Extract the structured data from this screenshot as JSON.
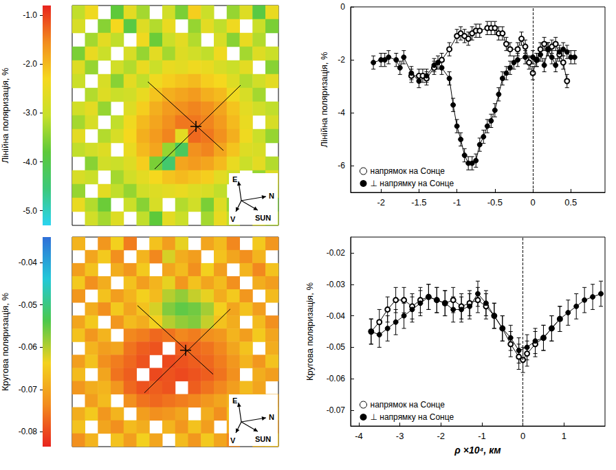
{
  "chart_data": [
    {
      "type": "heatmap",
      "colorbar": {
        "label": "Лінійна поляризація, %",
        "range": [
          -5.3,
          -0.8
        ],
        "ticks": [
          {
            "value": -1,
            "label": "-1.0"
          },
          {
            "value": -2,
            "label": "-2.0"
          },
          {
            "value": -3,
            "label": "-3.0"
          },
          {
            "value": -4,
            "label": "-4.0"
          },
          {
            "value": -5,
            "label": "-5.0"
          }
        ],
        "colors": [
          "#2ad4f0",
          "#3cc87a",
          "#5dc93a",
          "#c8e02a",
          "#f5d81e",
          "#f28c1e",
          "#e8241e"
        ]
      },
      "compass": [
        "E",
        "N",
        "V",
        "SUN"
      ],
      "cells": [
        [
          -3.1,
          -2.4,
          null,
          -3.8,
          -2.6,
          -3.3,
          null,
          -2.9,
          -3.6,
          -2.2,
          -3.0,
          null,
          -3.4,
          -2.7,
          -3.9,
          -2.5
        ],
        [
          -2.8,
          null,
          -3.5,
          -2.3,
          -3.9,
          -2.7,
          -3.2,
          -2.5,
          null,
          -3.4,
          -2.6,
          -3.1,
          -2.4,
          null,
          -3.0,
          -3.6
        ],
        [
          null,
          -3.3,
          -2.6,
          -3.1,
          null,
          -2.4,
          -3.7,
          -3.0,
          -2.6,
          -3.2,
          null,
          -2.8,
          -3.5,
          -2.5,
          -3.2,
          null
        ],
        [
          -3.6,
          -2.5,
          -3.0,
          null,
          -2.8,
          -3.4,
          -2.6,
          -3.3,
          -2.7,
          -2.9,
          -3.1,
          -2.4,
          null,
          -3.3,
          -2.7,
          -3.0
        ],
        [
          -2.7,
          -3.4,
          null,
          -2.9,
          -3.2,
          -2.5,
          -3.0,
          -2.5,
          -2.6,
          -2.4,
          -2.5,
          -2.8,
          -3.0,
          -2.6,
          null,
          -3.5
        ],
        [
          -3.0,
          null,
          -2.8,
          -3.5,
          -2.6,
          -3.1,
          -2.4,
          -2.2,
          -2.1,
          -2.0,
          -2.2,
          -2.3,
          -2.7,
          -3.2,
          -2.9,
          -2.6
        ],
        [
          null,
          -3.2,
          -2.7,
          -3.0,
          -2.9,
          -2.5,
          -2.1,
          -1.9,
          -1.8,
          -1.7,
          -1.9,
          -2.0,
          -2.4,
          -2.8,
          -3.3,
          null
        ],
        [
          -2.9,
          -2.6,
          -3.4,
          null,
          -2.7,
          -2.2,
          -1.9,
          -1.7,
          -1.6,
          -1.5,
          -1.6,
          -1.8,
          -2.1,
          -2.6,
          -2.9,
          -3.1
        ],
        [
          -3.3,
          -2.8,
          null,
          -3.1,
          -2.4,
          -2.0,
          -1.8,
          -1.6,
          -1.4,
          -1.4,
          -1.5,
          -1.7,
          -2.0,
          -2.5,
          null,
          -2.8
        ],
        [
          -2.6,
          null,
          -3.2,
          -2.8,
          -2.3,
          -1.9,
          -1.7,
          -1.5,
          -2.6,
          -1.3,
          -1.4,
          -1.6,
          -1.9,
          -2.4,
          -3.0,
          -3.4
        ],
        [
          -3.1,
          -2.9,
          -2.7,
          null,
          -2.5,
          -2.0,
          -1.8,
          -3.4,
          -4.2,
          -1.6,
          -1.5,
          -1.8,
          -2.1,
          -2.7,
          -2.8,
          null
        ],
        [
          null,
          -3.5,
          -2.9,
          -3.0,
          -2.7,
          -2.2,
          -3.6,
          -4.4,
          -1.8,
          -1.7,
          -1.8,
          -2.0,
          -2.5,
          -3.0,
          -2.6,
          -3.2
        ],
        [
          -2.8,
          -3.0,
          null,
          -3.3,
          -2.9,
          -2.6,
          -2.3,
          -2.1,
          -2.0,
          -2.1,
          -2.2,
          -2.6,
          -2.9,
          null,
          -3.4,
          -2.7
        ],
        [
          -3.4,
          null,
          -2.6,
          -3.1,
          -3.4,
          -2.9,
          -2.7,
          -2.6,
          -2.5,
          -2.7,
          -2.8,
          -3.1,
          null,
          -3.3,
          -2.9,
          -3.0
        ],
        [
          -2.5,
          -3.2,
          -3.7,
          null,
          -3.0,
          -3.5,
          -2.8,
          null,
          -3.2,
          -2.9,
          -3.6,
          -2.7,
          -3.4,
          -2.8,
          null,
          -3.6
        ],
        [
          null,
          -2.9,
          -3.3,
          -2.7,
          null,
          -3.1,
          -3.8,
          -2.6,
          -3.0,
          null,
          -3.3,
          -2.5,
          -3.1,
          null,
          -2.7,
          -3.2
        ]
      ]
    },
    {
      "type": "line",
      "ylabel": "Лінійна поляризація, %",
      "xlim": [
        -2.4,
        0.95
      ],
      "xticks": [
        -2,
        -1.5,
        -1,
        -0.5,
        0,
        0.5
      ],
      "ylim": [
        -7,
        0
      ],
      "yticks": [
        -6,
        -4,
        -2,
        0
      ],
      "grid": false,
      "legend": "lower left",
      "reference_line": {
        "x": 0,
        "line_style": "dashed"
      },
      "series": [
        {
          "name": "напрямок на Сонце",
          "color": "#000000",
          "marker": "circle_open",
          "error": 0.25,
          "x": [
            -1.6,
            -1.5,
            -1.45,
            -1.4,
            -1.3,
            -1.2,
            -1.1,
            -1.0,
            -0.95,
            -0.9,
            -0.85,
            -0.8,
            -0.75,
            -0.7,
            -0.6,
            -0.55,
            -0.5,
            -0.45,
            -0.4,
            -0.35,
            -0.3,
            -0.2,
            -0.15,
            -0.1,
            -0.05,
            0,
            0.05,
            0.1,
            0.15,
            0.2,
            0.25,
            0.3,
            0.35,
            0.4,
            0.45
          ],
          "values": [
            -2.6,
            -2.6,
            -2.6,
            -2.7,
            -2.3,
            -2.0,
            -1.6,
            -1.1,
            -1.0,
            -1.1,
            -1.2,
            -1.0,
            -0.9,
            -0.9,
            -0.8,
            -0.8,
            -0.8,
            -1.0,
            -1.0,
            -1.4,
            -1.6,
            -1.6,
            -1.2,
            -1.5,
            -2.1,
            -2.5,
            -2.0,
            -1.6,
            -1.4,
            -1.6,
            -1.5,
            -1.4,
            -1.8,
            -2.1,
            -2.8
          ]
        },
        {
          "name": "⊥ напрямку на Сонце",
          "color": "#000000",
          "marker": "circle",
          "error": 0.25,
          "x": [
            -2.1,
            -2.0,
            -1.95,
            -1.9,
            -1.8,
            -1.75,
            -1.7,
            -1.6,
            -1.5,
            -1.4,
            -1.3,
            -1.25,
            -1.2,
            -1.1,
            -1.05,
            -1.0,
            -0.95,
            -0.9,
            -0.85,
            -0.8,
            -0.75,
            -0.7,
            -0.65,
            -0.6,
            -0.55,
            -0.5,
            -0.45,
            -0.4,
            -0.35,
            -0.3,
            -0.25,
            -0.2,
            -0.1,
            0,
            0.05,
            0.1,
            0.15,
            0.2,
            0.25,
            0.3,
            0.35,
            0.4,
            0.45,
            0.5,
            0.55
          ],
          "values": [
            -2.1,
            -2.0,
            -2.0,
            -1.9,
            -2.0,
            -2.3,
            -1.9,
            -2.5,
            -2.8,
            -2.6,
            -2.2,
            -2.1,
            -2.3,
            -2.7,
            -3.7,
            -4.5,
            -5.0,
            -5.6,
            -5.9,
            -5.9,
            -5.8,
            -5.2,
            -4.9,
            -4.5,
            -4.3,
            -3.9,
            -3.3,
            -2.7,
            -2.5,
            -2.3,
            -2.1,
            -2.0,
            -1.9,
            -1.9,
            -2.0,
            -1.8,
            -2.2,
            -1.6,
            -1.9,
            -2.2,
            -1.7,
            -1.6,
            -1.7,
            -1.9,
            -1.9
          ]
        }
      ]
    },
    {
      "type": "heatmap",
      "colorbar": {
        "label": "Кругова поляризація, %",
        "range": [
          -0.0835,
          -0.034
        ],
        "ticks": [
          -0.08,
          -0.07,
          -0.06,
          -0.05,
          -0.04
        ],
        "colors": [
          "#e8241e",
          "#f28c1e",
          "#f3d21e",
          "#4cc84c",
          "#22c8d8",
          "#2f6fd8"
        ]
      },
      "compass": [
        "E",
        "N",
        "V",
        "SUN"
      ],
      "cells": [
        [
          -0.068,
          null,
          -0.072,
          -0.064,
          -0.075,
          null,
          -0.066,
          -0.071,
          -0.063,
          null,
          -0.07,
          -0.067,
          -0.074,
          null,
          -0.065,
          -0.072
        ],
        [
          null,
          -0.07,
          -0.065,
          -0.073,
          null,
          -0.068,
          -0.074,
          -0.062,
          -0.069,
          -0.071,
          null,
          -0.066,
          -0.07,
          -0.073,
          -0.068,
          null
        ],
        [
          -0.071,
          -0.066,
          null,
          -0.069,
          -0.072,
          -0.065,
          null,
          -0.07,
          -0.067,
          -0.073,
          -0.064,
          -0.071,
          null,
          -0.068,
          -0.074,
          -0.066
        ],
        [
          -0.065,
          -0.073,
          -0.069,
          null,
          -0.066,
          -0.071,
          -0.068,
          -0.063,
          -0.072,
          -0.066,
          -0.07,
          -0.067,
          -0.073,
          null,
          -0.069,
          -0.071
        ],
        [
          -0.072,
          null,
          -0.066,
          -0.071,
          -0.068,
          -0.064,
          -0.067,
          -0.06,
          -0.058,
          -0.061,
          -0.063,
          -0.069,
          -0.065,
          -0.072,
          null,
          -0.067
        ],
        [
          null,
          -0.069,
          -0.073,
          -0.065,
          -0.07,
          -0.066,
          -0.062,
          -0.057,
          -0.055,
          -0.056,
          -0.059,
          -0.064,
          -0.07,
          -0.066,
          -0.071,
          null
        ],
        [
          -0.07,
          -0.065,
          null,
          -0.072,
          -0.067,
          -0.069,
          -0.064,
          -0.06,
          -0.058,
          -0.057,
          -0.061,
          -0.066,
          -0.069,
          null,
          -0.067,
          -0.073
        ],
        [
          -0.066,
          -0.072,
          -0.068,
          null,
          -0.074,
          -0.075,
          -0.077,
          -0.076,
          -0.074,
          -0.075,
          -0.073,
          -0.072,
          -0.068,
          -0.071,
          -0.065,
          -0.07
        ],
        [
          null,
          -0.068,
          -0.071,
          -0.07,
          -0.076,
          -0.078,
          -0.079,
          null,
          -0.078,
          -0.077,
          -0.076,
          -0.074,
          -0.07,
          -0.066,
          null,
          -0.069
        ],
        [
          -0.071,
          -0.066,
          -0.073,
          -0.075,
          -0.077,
          -0.079,
          null,
          -0.08,
          -0.079,
          -0.078,
          -0.077,
          -0.075,
          -0.072,
          -0.068,
          -0.072,
          -0.066
        ],
        [
          -0.067,
          null,
          -0.07,
          -0.076,
          -0.078,
          null,
          -0.08,
          -0.079,
          -0.08,
          -0.079,
          -0.078,
          -0.076,
          -0.073,
          null,
          -0.069,
          -0.071
        ],
        [
          -0.072,
          -0.069,
          -0.068,
          -0.072,
          -0.077,
          -0.079,
          -0.078,
          -0.079,
          null,
          -0.078,
          -0.076,
          -0.074,
          -0.071,
          -0.067,
          -0.07,
          null
        ],
        [
          null,
          -0.071,
          -0.067,
          null,
          -0.073,
          -0.076,
          -0.077,
          -0.076,
          -0.075,
          -0.074,
          -0.072,
          -0.07,
          -0.068,
          -0.072,
          -0.066,
          -0.07
        ],
        [
          -0.069,
          -0.065,
          -0.072,
          -0.068,
          null,
          -0.071,
          -0.073,
          -0.072,
          -0.07,
          null,
          -0.069,
          -0.073,
          -0.066,
          -0.07,
          null,
          -0.068
        ],
        [
          -0.066,
          null,
          -0.07,
          -0.073,
          -0.067,
          -0.069,
          null,
          -0.068,
          -0.072,
          -0.066,
          -0.071,
          null,
          -0.069,
          -0.073,
          -0.067,
          -0.071
        ],
        [
          -0.073,
          -0.068,
          null,
          -0.066,
          -0.071,
          -0.064,
          -0.07,
          null,
          -0.067,
          -0.072,
          -0.065,
          -0.07,
          -0.074,
          null,
          -0.068,
          -0.066
        ]
      ]
    },
    {
      "type": "line",
      "ylabel": "Кругова поляризація, %",
      "xlabel": "ρ ×10⁴, км",
      "xlim": [
        -4.2,
        2.0
      ],
      "xticks": [
        -4,
        -3,
        -2,
        -1,
        0,
        1
      ],
      "ylim": [
        -0.075,
        -0.015
      ],
      "yticks": [
        -0.07,
        -0.06,
        -0.05,
        -0.04,
        -0.03,
        -0.02
      ],
      "grid": false,
      "legend": "lower left",
      "reference_line": {
        "x": 0,
        "line_style": "dashed"
      },
      "series": [
        {
          "name": "напрямок на Сонце",
          "color": "#000000",
          "marker": "circle_open",
          "error": 0.004,
          "x": [
            -3.7,
            -3.5,
            -3.3,
            -3.1,
            -2.9,
            -2.7,
            -2.5,
            -2.3,
            -2.1,
            -1.9,
            -1.7,
            -1.5,
            -1.3,
            -1.1,
            -0.9,
            -0.7,
            -0.5,
            -0.3,
            -0.1,
            0,
            0.1,
            0.3,
            0.5,
            0.7,
            0.9
          ],
          "values": [
            -0.045,
            -0.042,
            -0.038,
            -0.035,
            -0.035,
            -0.037,
            -0.035,
            -0.034,
            -0.035,
            -0.036,
            -0.035,
            -0.037,
            -0.036,
            -0.035,
            -0.037,
            -0.04,
            -0.044,
            -0.049,
            -0.053,
            -0.054,
            -0.052,
            -0.049,
            -0.047,
            -0.044,
            -0.041
          ]
        },
        {
          "name": "⊥ напрямку на Сонце",
          "color": "#000000",
          "marker": "circle",
          "error": 0.004,
          "x": [
            -3.7,
            -3.5,
            -3.3,
            -3.1,
            -2.9,
            -2.7,
            -2.5,
            -2.3,
            -2.1,
            -1.9,
            -1.7,
            -1.5,
            -1.3,
            -1.1,
            -0.9,
            -0.7,
            -0.5,
            -0.3,
            -0.1,
            0.1,
            0.3,
            0.5,
            0.7,
            0.9,
            1.1,
            1.3,
            1.5,
            1.7,
            1.9
          ],
          "values": [
            -0.045,
            -0.046,
            -0.044,
            -0.042,
            -0.04,
            -0.038,
            -0.036,
            -0.034,
            -0.035,
            -0.036,
            -0.038,
            -0.038,
            -0.037,
            -0.033,
            -0.036,
            -0.04,
            -0.044,
            -0.047,
            -0.051,
            -0.05,
            -0.048,
            -0.047,
            -0.044,
            -0.041,
            -0.039,
            -0.037,
            -0.035,
            -0.034,
            -0.033
          ]
        }
      ]
    }
  ]
}
